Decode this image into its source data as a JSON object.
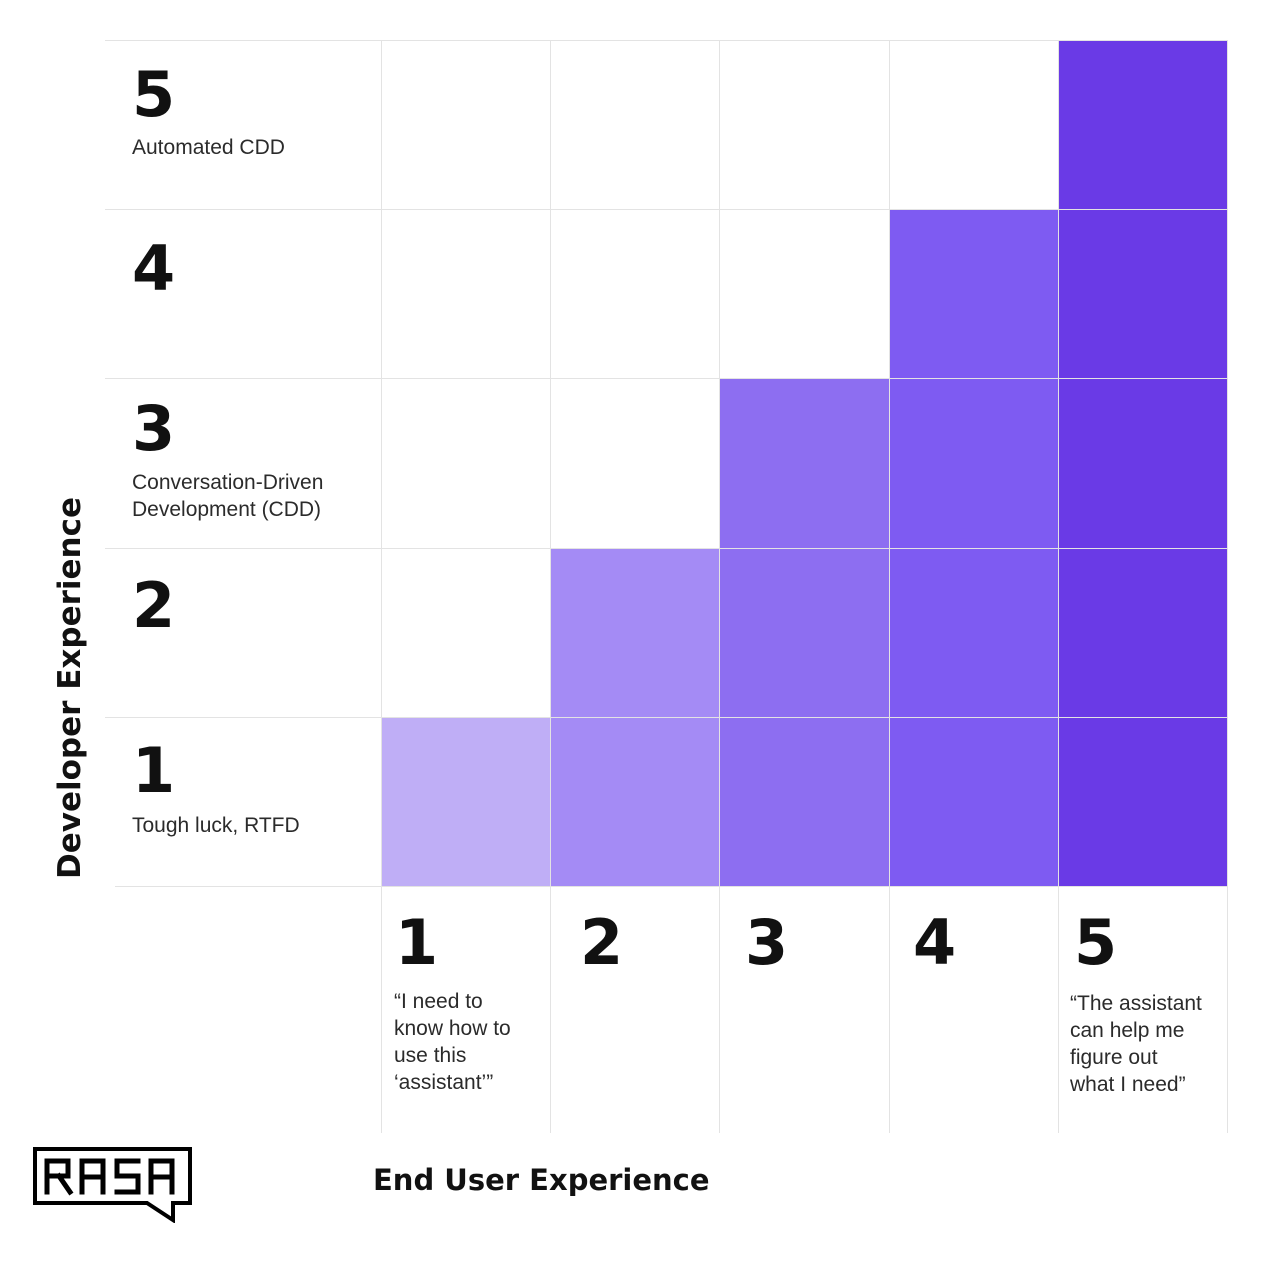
{
  "y_axis_title": "Developer Experience",
  "x_axis_title": "End User Experience",
  "logo_text": "RASA",
  "rows": [
    {
      "level": "5",
      "label": [
        "Automated CDD"
      ]
    },
    {
      "level": "4",
      "label": []
    },
    {
      "level": "3",
      "label": [
        "Conversation-Driven",
        "Development (CDD)"
      ]
    },
    {
      "level": "2",
      "label": []
    },
    {
      "level": "1",
      "label": [
        "Tough luck, RTFD"
      ]
    }
  ],
  "columns": [
    {
      "level": "1",
      "label": [
        "“I need to",
        "know how to",
        "use this",
        "‘assistant’”"
      ]
    },
    {
      "level": "2",
      "label": []
    },
    {
      "level": "3",
      "label": []
    },
    {
      "level": "4",
      "label": []
    },
    {
      "level": "5",
      "label": [
        "“The assistant",
        "can help me",
        "figure out",
        "what I need”"
      ]
    }
  ],
  "shade_colors": {
    "1": "#bfaef6",
    "2": "#a48bf5",
    "3": "#8d6ef1",
    "4": "#7e5bf2",
    "5": "#6a3ae6"
  },
  "chart_data": {
    "type": "heatmap",
    "xlabel": "End User Experience",
    "ylabel": "Developer Experience",
    "x_categories": [
      "1",
      "2",
      "3",
      "4",
      "5"
    ],
    "y_categories": [
      "1",
      "2",
      "3",
      "4",
      "5"
    ],
    "cells": [
      {
        "x": "1",
        "y": "1",
        "shade": 1
      },
      {
        "x": "2",
        "y": "1",
        "shade": 2
      },
      {
        "x": "3",
        "y": "1",
        "shade": 3
      },
      {
        "x": "4",
        "y": "1",
        "shade": 4
      },
      {
        "x": "5",
        "y": "1",
        "shade": 5
      },
      {
        "x": "2",
        "y": "2",
        "shade": 2
      },
      {
        "x": "3",
        "y": "2",
        "shade": 3
      },
      {
        "x": "4",
        "y": "2",
        "shade": 4
      },
      {
        "x": "5",
        "y": "2",
        "shade": 5
      },
      {
        "x": "3",
        "y": "3",
        "shade": 3
      },
      {
        "x": "4",
        "y": "3",
        "shade": 4
      },
      {
        "x": "5",
        "y": "3",
        "shade": 5
      },
      {
        "x": "4",
        "y": "4",
        "shade": 4
      },
      {
        "x": "5",
        "y": "4",
        "shade": 5
      },
      {
        "x": "5",
        "y": "5",
        "shade": 5
      }
    ]
  }
}
